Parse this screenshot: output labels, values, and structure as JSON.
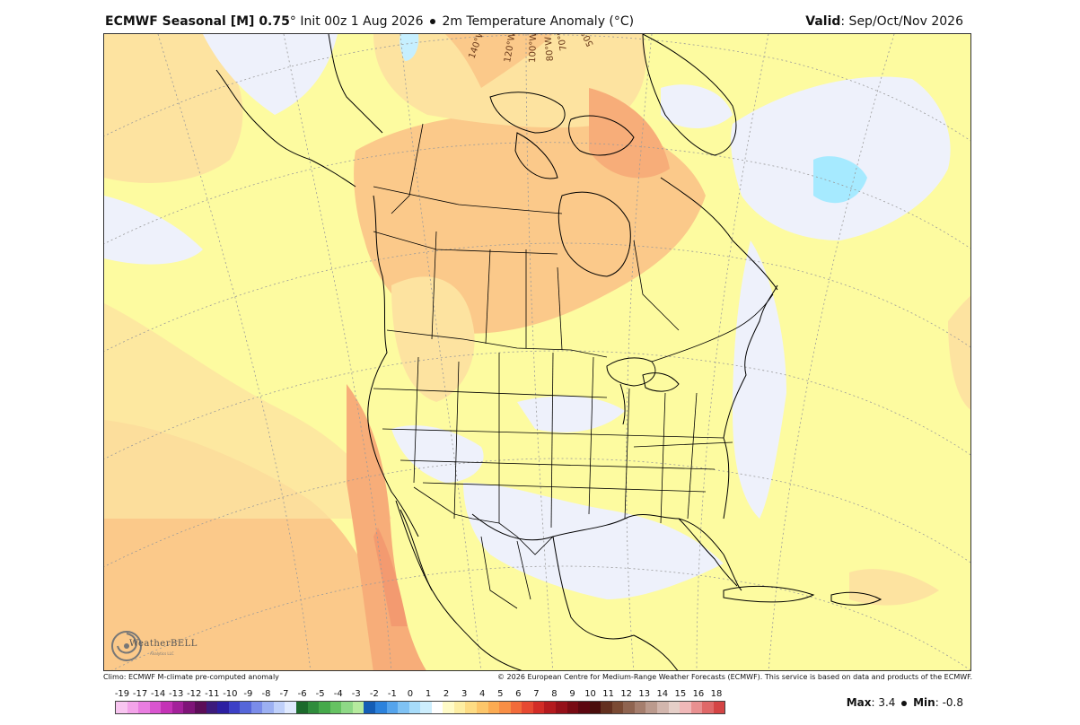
{
  "header": {
    "title_bold": "ECMWF Seasonal [M] 0.75",
    "degree_symbol": "°",
    "init": "Init 00z 1 Aug 2026",
    "variable": "2m Temperature Anomaly (°C)",
    "valid_label": "Valid",
    "valid_value": ": Sep/Oct/Nov 2026"
  },
  "map": {
    "longitude_labels": [
      "140°W",
      "120°W",
      "100°W",
      "80°W",
      "70°W",
      "50°W"
    ],
    "colors": {
      "ocean_pale_yellow": "#fdfba0",
      "light_orange": "#fde3a0",
      "orange": "#fbc98a",
      "deep_orange": "#f7ad79",
      "cool_pale_blue": "#eef1fb",
      "light_blue": "#c6efff",
      "aqua": "#a6eaff",
      "borders": "#000000",
      "grid": "#9a9a9a"
    }
  },
  "logo": {
    "text": "WeatherBELL",
    "sub": "Analytics LLC"
  },
  "footer": {
    "left": "Climo: ECMWF M-climate pre-computed anomaly",
    "right": "© 2026 European Centre for Medium-Range Weather Forecasts (ECMWF). This service is based on data and products of the ECMWF."
  },
  "colorbar": {
    "labels": [
      "-19",
      "-17",
      "-14",
      "-13",
      "-12",
      "-11",
      "-10",
      "-9",
      "-8",
      "-7",
      "-6",
      "-5",
      "-4",
      "-3",
      "-2",
      "-1",
      "0",
      "1",
      "2",
      "3",
      "4",
      "5",
      "6",
      "7",
      "8",
      "9",
      "10",
      "11",
      "12",
      "13",
      "14",
      "15",
      "16",
      "18"
    ],
    "colors": [
      "#f8c5f0",
      "#f3a3e9",
      "#e97de0",
      "#d955cf",
      "#c433b6",
      "#a3219a",
      "#7e1478",
      "#5c0d58",
      "#3d1b7c",
      "#2c1fa1",
      "#3c40c6",
      "#5566d9",
      "#7a8ce9",
      "#9cb0f2",
      "#bfd0fa",
      "#e0eafe",
      "#1c6a2c",
      "#2f8c3c",
      "#45a94a",
      "#66c262",
      "#8ed886",
      "#b6ea9e",
      "#145db5",
      "#2c82dc",
      "#55a4ec",
      "#7fc2f4",
      "#a7dcfa",
      "#cdeefd",
      "#ffffff",
      "#fffbc7",
      "#fdeea3",
      "#fddc84",
      "#fcc66a",
      "#fbab52",
      "#f88e45",
      "#f26b3a",
      "#e64931",
      "#d22c26",
      "#b41a1e",
      "#951019",
      "#780a13",
      "#5c0710",
      "#4a0e0c",
      "#63301f",
      "#7a4a33",
      "#8f6450",
      "#a57e6d",
      "#bb9a8d",
      "#d2b6ad",
      "#e5cfc8",
      "#f0b8b8",
      "#e89090",
      "#df6868",
      "#d44444"
    ]
  },
  "stats": {
    "max_label": "Max",
    "max_value": ": 3.4",
    "min_label": "Min",
    "min_value": ": -0.8"
  }
}
